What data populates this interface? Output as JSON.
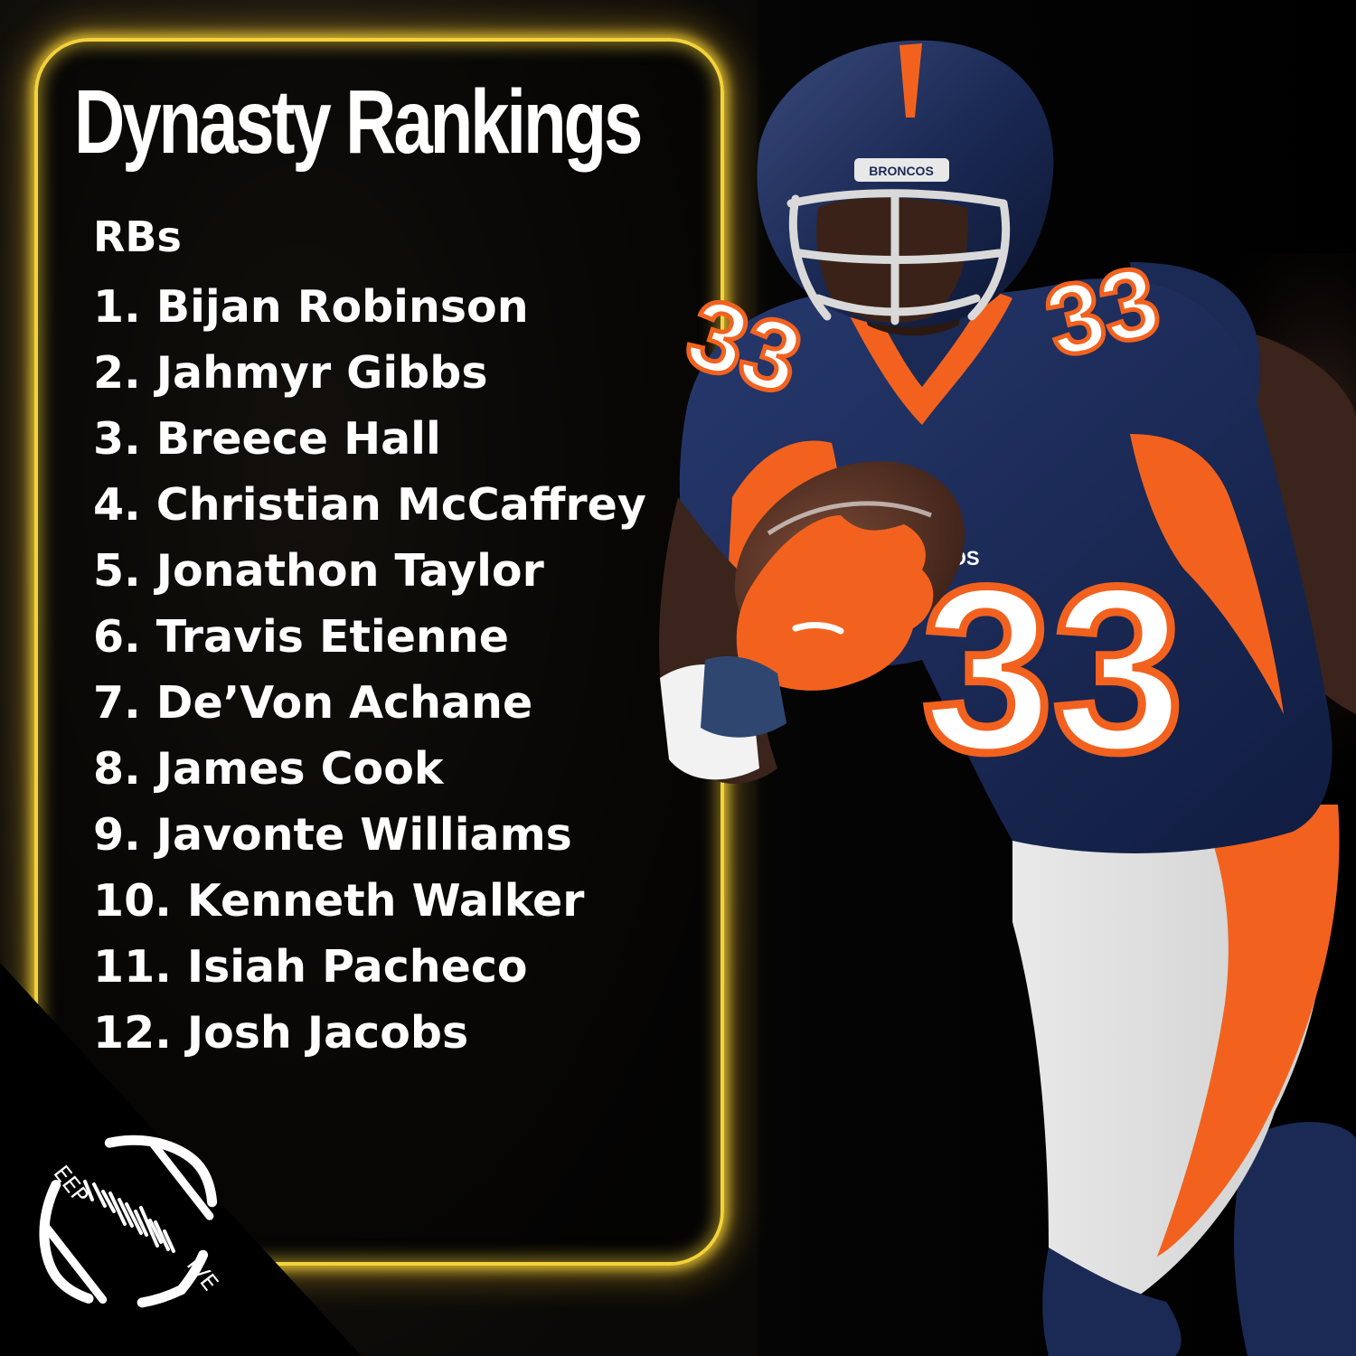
{
  "graphic": {
    "title": "Dynasty Rankings",
    "position": "RBs",
    "rankings": [
      "1. Bijan Robinson",
      "2. Jahmyr Gibbs",
      "3. Breece Hall",
      "4. Christian McCaffrey",
      "5. Jonathon Taylor",
      "6. Travis Etienne",
      "7. De’Von Achane",
      "8. James Cook",
      "9. Javonte Williams",
      "10. Kenneth Walker",
      "11. Isiah Pacheco",
      "12. Josh Jacobs"
    ]
  },
  "photo": {
    "helmet_text": "BRONCOS",
    "jersey_number": "33",
    "chest_text": "NCOS"
  },
  "logo": {
    "top_text": "EEP",
    "bottom_text": "IVE"
  },
  "colors": {
    "frame_glow": "#f4d23a",
    "broncos_navy": "#1b2a55",
    "broncos_orange": "#f2621e",
    "text": "#ffffff",
    "background": "#000000"
  }
}
